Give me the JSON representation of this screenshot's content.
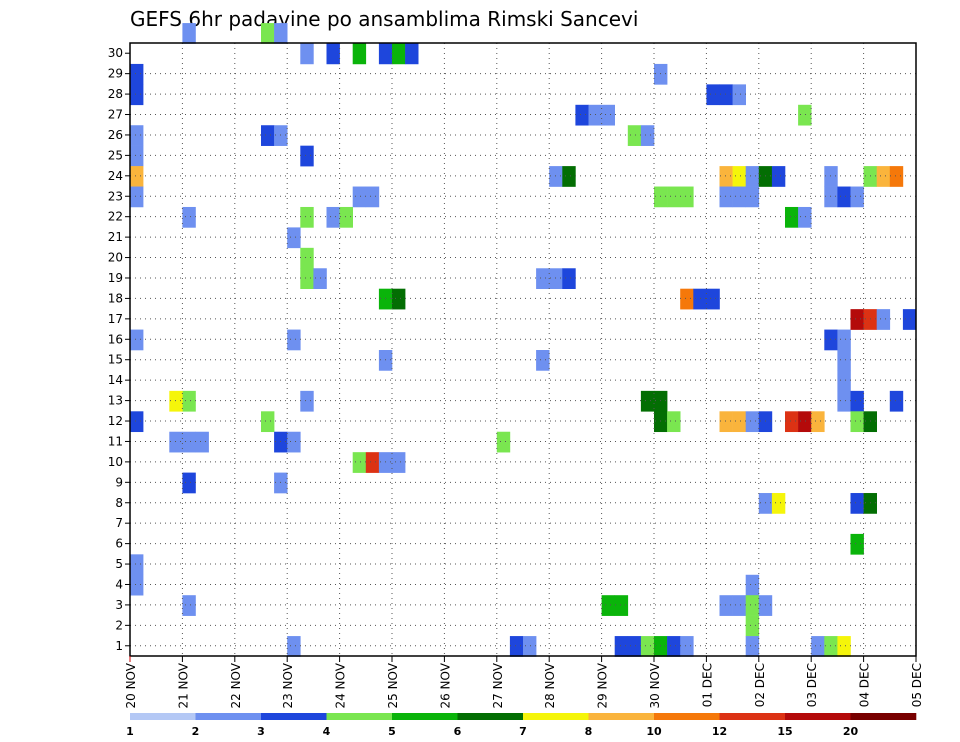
{
  "chart_data": {
    "type": "heatmap",
    "title": "GEFS 6hr padavine po ansamblima Rimski Sancevi",
    "xlabel": "",
    "ylabel": "",
    "x_tick_labels": [
      "20 NOV",
      "21 NOV",
      "22 NOV",
      "23 NOV",
      "24 NOV",
      "25 NOV",
      "26 NOV",
      "27 NOV",
      "28 NOV",
      "29 NOV",
      "30 NOV",
      "01 DEC",
      "02 DEC",
      "03 DEC",
      "04 DEC",
      "05 DEC"
    ],
    "y_tick_labels": [
      "1",
      "2",
      "3",
      "4",
      "5",
      "6",
      "7",
      "8",
      "9",
      "10",
      "11",
      "12",
      "13",
      "14",
      "15",
      "16",
      "17",
      "18",
      "19",
      "20",
      "21",
      "22",
      "23",
      "24",
      "25",
      "26",
      "27",
      "28",
      "29",
      "30"
    ],
    "xlim": [
      0,
      60
    ],
    "ylim": [
      0,
      30
    ],
    "grid": true,
    "colorbar": {
      "position": "bottom",
      "levels": [
        "1",
        "2",
        "3",
        "4",
        "5",
        "6",
        "7",
        "8",
        "10",
        "12",
        "15",
        "20"
      ],
      "colors": [
        "#b4c8f5",
        "#6e90f0",
        "#1e46dc",
        "#7ae650",
        "#0ab40a",
        "#036e03",
        "#f5f50a",
        "#fab43c",
        "#f5780a",
        "#dc3214",
        "#b40a0a",
        "#780000"
      ]
    },
    "x_unit": "6-hourly steps from 20 NOV 00Z",
    "y_unit": "ensemble member",
    "cells": [
      [
        0,
        28,
        2
      ],
      [
        0,
        27,
        2
      ],
      [
        0,
        25,
        1
      ],
      [
        0,
        24,
        1
      ],
      [
        0,
        23,
        7
      ],
      [
        0,
        22,
        1
      ],
      [
        0,
        15,
        1
      ],
      [
        0,
        11,
        2
      ],
      [
        0,
        4,
        1
      ],
      [
        0,
        3,
        1
      ],
      [
        4,
        30,
        1
      ],
      [
        4,
        21,
        1
      ],
      [
        4,
        12,
        3
      ],
      [
        4,
        10,
        1
      ],
      [
        4,
        8,
        2
      ],
      [
        4,
        2,
        1
      ],
      [
        3,
        12,
        6
      ],
      [
        3,
        10,
        1
      ],
      [
        5,
        10,
        1
      ],
      [
        10,
        30,
        3
      ],
      [
        11,
        30,
        1
      ],
      [
        10,
        25,
        2
      ],
      [
        11,
        25,
        1
      ],
      [
        10,
        11,
        3
      ],
      [
        11,
        10,
        2
      ],
      [
        11,
        8,
        1
      ],
      [
        12,
        10,
        1
      ],
      [
        12,
        20,
        1
      ],
      [
        12,
        15,
        1
      ],
      [
        12,
        0,
        1
      ],
      [
        13,
        29,
        1
      ],
      [
        13,
        24,
        2
      ],
      [
        13,
        21,
        3
      ],
      [
        13,
        19,
        3
      ],
      [
        13,
        18,
        3
      ],
      [
        14,
        18,
        1
      ],
      [
        13,
        12,
        1
      ],
      [
        15,
        29,
        2
      ],
      [
        15,
        21,
        1
      ],
      [
        16,
        21,
        3
      ],
      [
        17,
        29,
        4
      ],
      [
        17,
        22,
        1
      ],
      [
        18,
        22,
        1
      ],
      [
        17,
        9,
        3
      ],
      [
        18,
        9,
        9
      ],
      [
        19,
        29,
        2
      ],
      [
        20,
        29,
        4
      ],
      [
        21,
        29,
        2
      ],
      [
        19,
        17,
        4
      ],
      [
        20,
        17,
        5
      ],
      [
        19,
        14,
        1
      ],
      [
        19,
        9,
        1
      ],
      [
        20,
        9,
        1
      ],
      [
        28,
        10,
        3
      ],
      [
        29,
        0,
        2
      ],
      [
        30,
        0,
        1
      ],
      [
        32,
        23,
        1
      ],
      [
        33,
        23,
        5
      ],
      [
        31,
        18,
        1
      ],
      [
        32,
        18,
        1
      ],
      [
        33,
        18,
        2
      ],
      [
        31,
        14,
        1
      ],
      [
        34,
        26,
        2
      ],
      [
        35,
        26,
        1
      ],
      [
        36,
        26,
        1
      ],
      [
        36,
        2,
        4
      ],
      [
        37,
        2,
        4
      ],
      [
        37,
        0,
        2
      ],
      [
        38,
        0,
        2
      ],
      [
        39,
        0,
        3
      ],
      [
        40,
        0,
        4
      ],
      [
        41,
        0,
        2
      ],
      [
        42,
        0,
        1
      ],
      [
        38,
        25,
        3
      ],
      [
        39,
        25,
        1
      ],
      [
        39,
        12,
        5
      ],
      [
        40,
        12,
        5
      ],
      [
        40,
        11,
        5
      ],
      [
        41,
        11,
        3
      ],
      [
        40,
        28,
        1
      ],
      [
        40,
        22,
        3
      ],
      [
        41,
        22,
        3
      ],
      [
        42,
        22,
        3
      ],
      [
        42,
        17,
        8
      ],
      [
        43,
        17,
        2
      ],
      [
        44,
        17,
        2
      ],
      [
        44,
        27,
        2
      ],
      [
        45,
        27,
        2
      ],
      [
        46,
        27,
        1
      ],
      [
        45,
        23,
        7
      ],
      [
        46,
        23,
        6
      ],
      [
        47,
        23,
        1
      ],
      [
        48,
        23,
        5
      ],
      [
        49,
        23,
        2
      ],
      [
        45,
        22,
        1
      ],
      [
        46,
        22,
        1
      ],
      [
        47,
        22,
        1
      ],
      [
        45,
        11,
        7
      ],
      [
        46,
        11,
        7
      ],
      [
        47,
        11,
        1
      ],
      [
        48,
        11,
        2
      ],
      [
        45,
        2,
        1
      ],
      [
        46,
        2,
        1
      ],
      [
        47,
        3,
        1
      ],
      [
        47,
        2,
        3
      ],
      [
        47,
        1,
        3
      ],
      [
        48,
        2,
        1
      ],
      [
        48,
        7,
        1
      ],
      [
        49,
        7,
        6
      ],
      [
        47,
        0,
        1
      ],
      [
        51,
        26,
        3
      ],
      [
        50,
        21,
        4
      ],
      [
        51,
        21,
        1
      ],
      [
        50,
        11,
        9
      ],
      [
        51,
        11,
        10
      ],
      [
        52,
        11,
        7
      ],
      [
        53,
        23,
        1
      ],
      [
        53,
        22,
        1
      ],
      [
        54,
        22,
        2
      ],
      [
        55,
        22,
        1
      ],
      [
        53,
        15,
        2
      ],
      [
        54,
        15,
        1
      ],
      [
        54,
        14,
        1
      ],
      [
        54,
        13,
        1
      ],
      [
        54,
        12,
        1
      ],
      [
        55,
        12,
        2
      ],
      [
        52,
        0,
        1
      ],
      [
        53,
        0,
        3
      ],
      [
        54,
        0,
        6
      ],
      [
        56,
        23,
        3
      ],
      [
        57,
        23,
        7
      ],
      [
        58,
        23,
        8
      ],
      [
        55,
        16,
        10
      ],
      [
        56,
        16,
        9
      ],
      [
        57,
        16,
        1
      ],
      [
        59,
        16,
        2
      ],
      [
        58,
        12,
        2
      ],
      [
        55,
        11,
        3
      ],
      [
        56,
        11,
        5
      ],
      [
        55,
        7,
        2
      ],
      [
        56,
        7,
        5
      ],
      [
        55,
        5,
        4
      ]
    ]
  }
}
